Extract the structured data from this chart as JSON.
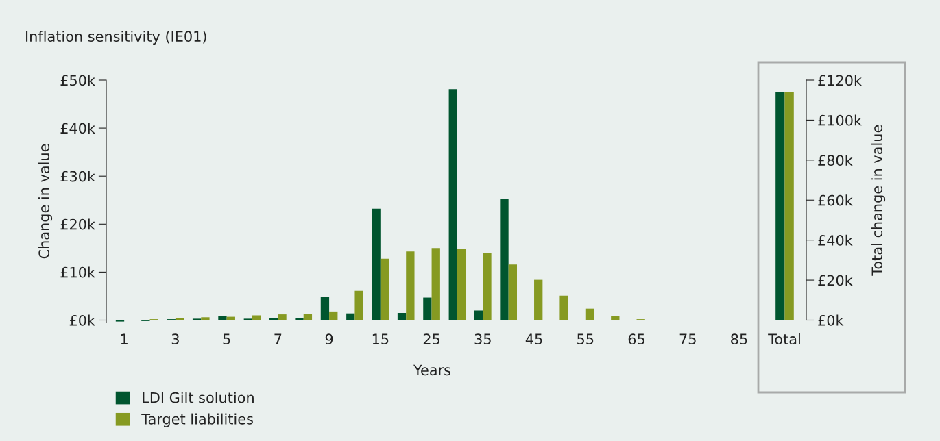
{
  "chart_data": [
    {
      "type": "bar",
      "title": "Inflation sensitivity (IE01)",
      "xlabel": "Years",
      "ylabel": "Change in value",
      "categories": [
        "1",
        null,
        "3",
        null,
        "5",
        null,
        "7",
        null,
        "9",
        null,
        "15",
        null,
        "25",
        null,
        "35",
        null,
        "45",
        null,
        "55",
        null,
        "65",
        null,
        "75",
        null,
        "85"
      ],
      "series": [
        {
          "name": "LDI Gilt solution",
          "color": "#00552f",
          "values": [
            -0.3,
            -0.2,
            0.2,
            0.3,
            0.9,
            0.3,
            0.4,
            0.4,
            4.9,
            1.4,
            23.2,
            1.5,
            4.7,
            48.1,
            2.0,
            25.3,
            0,
            0,
            0,
            0,
            0,
            0,
            0,
            0,
            0
          ]
        },
        {
          "name": "Target liabilities",
          "color": "#869a22",
          "values": [
            null,
            0.2,
            0.4,
            0.6,
            0.7,
            1.0,
            1.2,
            1.3,
            1.8,
            6.1,
            12.8,
            14.3,
            15.0,
            14.9,
            13.9,
            11.6,
            8.4,
            5.1,
            2.4,
            0.9,
            0.2,
            null,
            0,
            0,
            null
          ]
        }
      ],
      "ylim": [
        -0.5,
        50
      ],
      "yticks": [
        {
          "value": 0,
          "label": "£0k"
        },
        {
          "value": 10,
          "label": "£10k"
        },
        {
          "value": 20,
          "label": "£20k"
        },
        {
          "value": 30,
          "label": "£30k"
        },
        {
          "value": 40,
          "label": "£40k"
        },
        {
          "value": 50,
          "label": "£50k"
        }
      ],
      "legend": "bottom left",
      "grid": false
    },
    {
      "type": "bar",
      "ylabel": "Total change in value",
      "categories": [
        "Total"
      ],
      "series": [
        {
          "color": "#00552f",
          "values": [
            114
          ]
        },
        {
          "color": "#869a22",
          "values": [
            114
          ]
        }
      ],
      "ylim": [
        0,
        120
      ],
      "yticks": [
        {
          "value": 0,
          "label": "£0k"
        },
        {
          "value": 20,
          "label": "£20k"
        },
        {
          "value": 40,
          "label": "£40k"
        },
        {
          "value": 60,
          "label": "£60k"
        },
        {
          "value": 80,
          "label": "£80k"
        },
        {
          "value": 100,
          "label": "£100k"
        },
        {
          "value": 120,
          "label": "£120k"
        }
      ],
      "grid": false
    }
  ]
}
